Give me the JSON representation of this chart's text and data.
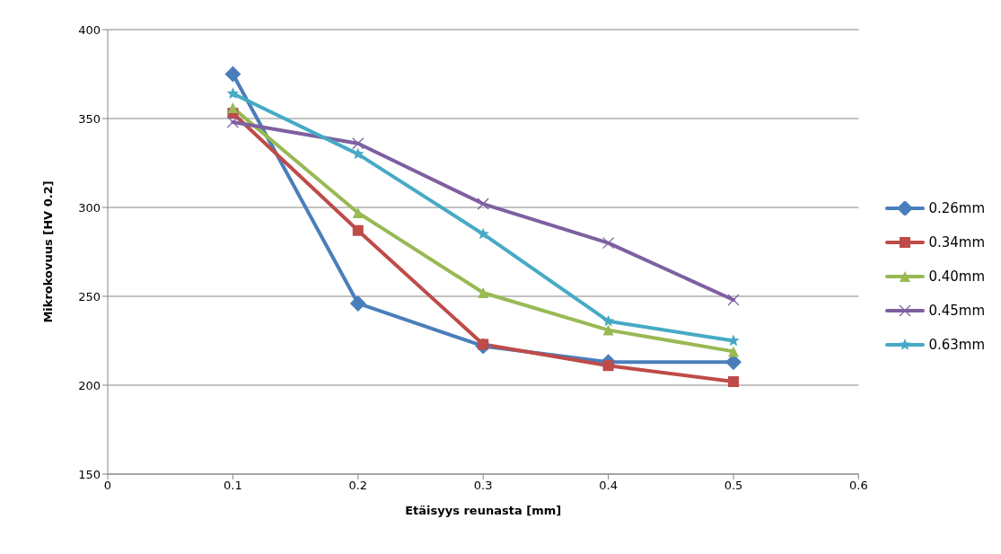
{
  "chart_data": {
    "type": "line",
    "xlabel": "Etäisyys reunasta [mm]",
    "ylabel": "Mikrokovuus  [HV 0.2]",
    "x": [
      0.1,
      0.2,
      0.3,
      0.4,
      0.5
    ],
    "series": [
      {
        "name": "0.26mm",
        "color": "#4a7ebb",
        "marker": "diamond",
        "values": [
          375,
          246,
          222,
          213,
          213
        ]
      },
      {
        "name": "0.34mm",
        "color": "#be4b48",
        "marker": "square",
        "values": [
          353,
          287,
          223,
          211,
          202
        ]
      },
      {
        "name": "0.40mm",
        "color": "#98b954",
        "marker": "triangle",
        "values": [
          356,
          297,
          252,
          231,
          219
        ]
      },
      {
        "name": "0.45mm",
        "color": "#7d60a0",
        "marker": "cross",
        "values": [
          348,
          336,
          302,
          280,
          248
        ]
      },
      {
        "name": "0.63mm",
        "color": "#46aac5",
        "marker": "star",
        "values": [
          364,
          330,
          285,
          236,
          225
        ]
      }
    ],
    "xlim": [
      0,
      0.6
    ],
    "xticks": [
      0,
      0.1,
      0.2,
      0.3,
      0.4,
      0.5,
      0.6
    ],
    "ylim": [
      150,
      400
    ],
    "yticks": [
      150,
      200,
      250,
      300,
      350,
      400
    ],
    "grid": "y",
    "legend": "right"
  }
}
